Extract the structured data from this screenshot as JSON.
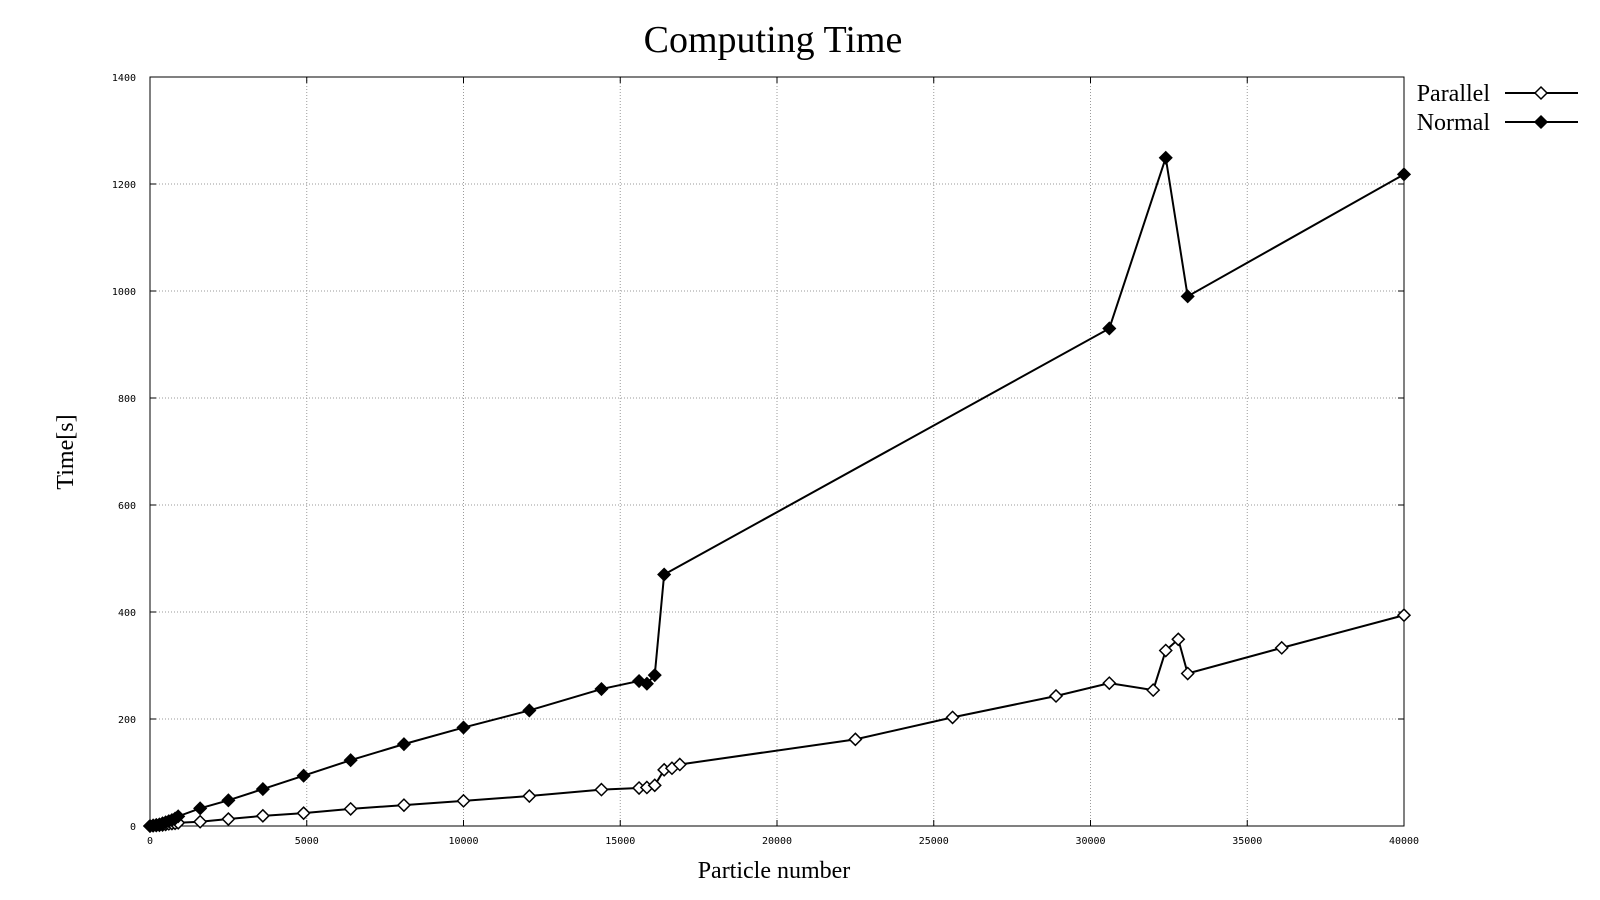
{
  "chart_data": {
    "type": "line",
    "title": "Computing Time",
    "xlabel": "Particle number",
    "ylabel": "Time[s]",
    "xlim": [
      0,
      40000
    ],
    "ylim": [
      0,
      1400
    ],
    "xticks": [
      0,
      5000,
      10000,
      15000,
      20000,
      25000,
      30000,
      35000,
      40000
    ],
    "yticks": [
      0,
      200,
      400,
      600,
      800,
      1000,
      1200,
      1400
    ],
    "grid": true,
    "legend_position": "top-right, outside plot",
    "series": [
      {
        "name": "Parallel",
        "marker": "open-diamond",
        "points": [
          [
            0,
            0
          ],
          [
            100,
            0.5
          ],
          [
            200,
            1
          ],
          [
            300,
            1.5
          ],
          [
            400,
            2
          ],
          [
            500,
            3
          ],
          [
            600,
            4
          ],
          [
            700,
            4.5
          ],
          [
            800,
            5
          ],
          [
            900,
            6
          ],
          [
            1600,
            8
          ],
          [
            2500,
            13
          ],
          [
            3600,
            19
          ],
          [
            4900,
            24
          ],
          [
            6400,
            32
          ],
          [
            8100,
            39
          ],
          [
            10000,
            47
          ],
          [
            12100,
            56
          ],
          [
            14400,
            68
          ],
          [
            15600,
            71
          ],
          [
            15850,
            72
          ],
          [
            16100,
            76
          ],
          [
            16400,
            105
          ],
          [
            16650,
            108
          ],
          [
            16900,
            115
          ],
          [
            22500,
            162
          ],
          [
            25600,
            203
          ],
          [
            28900,
            243
          ],
          [
            30600,
            267
          ],
          [
            32000,
            254
          ],
          [
            32400,
            328
          ],
          [
            32800,
            349
          ],
          [
            33100,
            285
          ],
          [
            36100,
            333
          ],
          [
            40000,
            394
          ]
        ]
      },
      {
        "name": "Normal",
        "marker": "filled-diamond",
        "points": [
          [
            0,
            0
          ],
          [
            100,
            1
          ],
          [
            200,
            2
          ],
          [
            300,
            3
          ],
          [
            400,
            5
          ],
          [
            500,
            7
          ],
          [
            600,
            9
          ],
          [
            700,
            11
          ],
          [
            800,
            14
          ],
          [
            900,
            18
          ],
          [
            1600,
            33
          ],
          [
            2500,
            48
          ],
          [
            3600,
            69
          ],
          [
            4900,
            94
          ],
          [
            6400,
            123
          ],
          [
            8100,
            153
          ],
          [
            10000,
            184
          ],
          [
            12100,
            216
          ],
          [
            14400,
            256
          ],
          [
            15600,
            271
          ],
          [
            15850,
            266
          ],
          [
            16100,
            282
          ],
          [
            16400,
            470
          ],
          [
            30600,
            930
          ],
          [
            32400,
            1249
          ],
          [
            33100,
            990
          ],
          [
            40000,
            1218
          ]
        ]
      }
    ]
  }
}
